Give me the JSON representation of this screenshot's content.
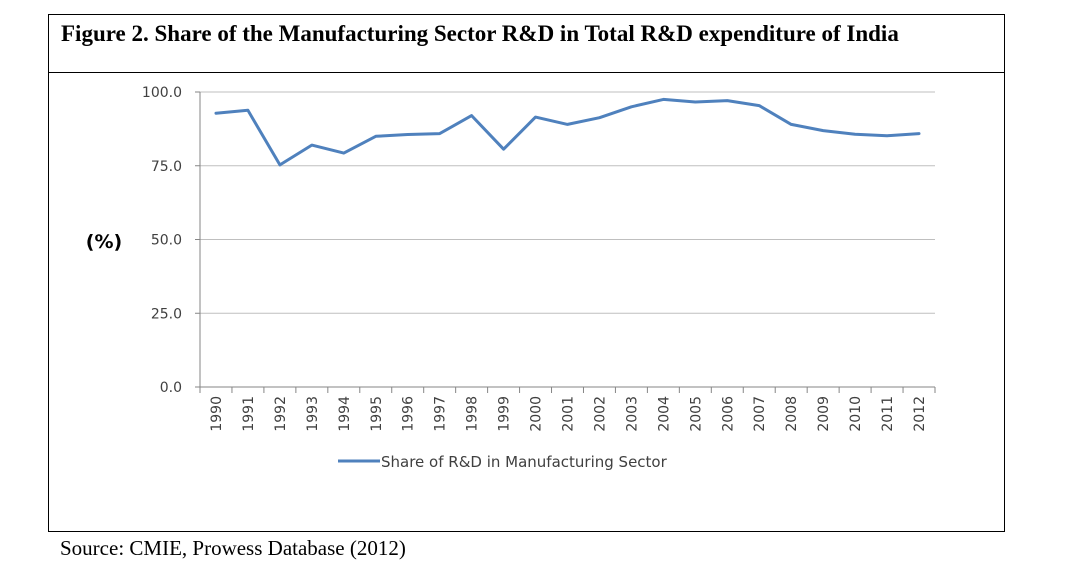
{
  "figure": {
    "title": "Figure 2. Share of the Manufacturing Sector R&D in Total R&D expenditure of India",
    "source": "Source: CMIE, Prowess Database (2012)"
  },
  "chart_data": {
    "type": "line",
    "title": "",
    "xlabel": "",
    "ylabel": "(%)",
    "ylim": [
      0,
      100
    ],
    "yticks": [
      "0.0",
      "25.0",
      "50.0",
      "75.0",
      "100.0"
    ],
    "ytick_values": [
      0,
      25,
      50,
      75,
      100
    ],
    "grid": true,
    "legend_position": "bottom",
    "categories": [
      "1990",
      "1991",
      "1992",
      "1993",
      "1994",
      "1995",
      "1996",
      "1997",
      "1998",
      "1999",
      "2000",
      "2001",
      "2002",
      "2003",
      "2004",
      "2005",
      "2006",
      "2007",
      "2008",
      "2009",
      "2010",
      "2011",
      "2012"
    ],
    "series": [
      {
        "name": "Share of R&D in Manufacturing Sector",
        "color": "#4f81bd",
        "values": [
          92.8,
          93.8,
          75.3,
          82.0,
          79.3,
          85.0,
          85.6,
          85.9,
          92.0,
          80.6,
          91.5,
          89.0,
          91.3,
          95.0,
          97.5,
          96.6,
          97.1,
          95.4,
          89.0,
          86.9,
          85.7,
          85.2,
          85.9
        ]
      }
    ]
  }
}
